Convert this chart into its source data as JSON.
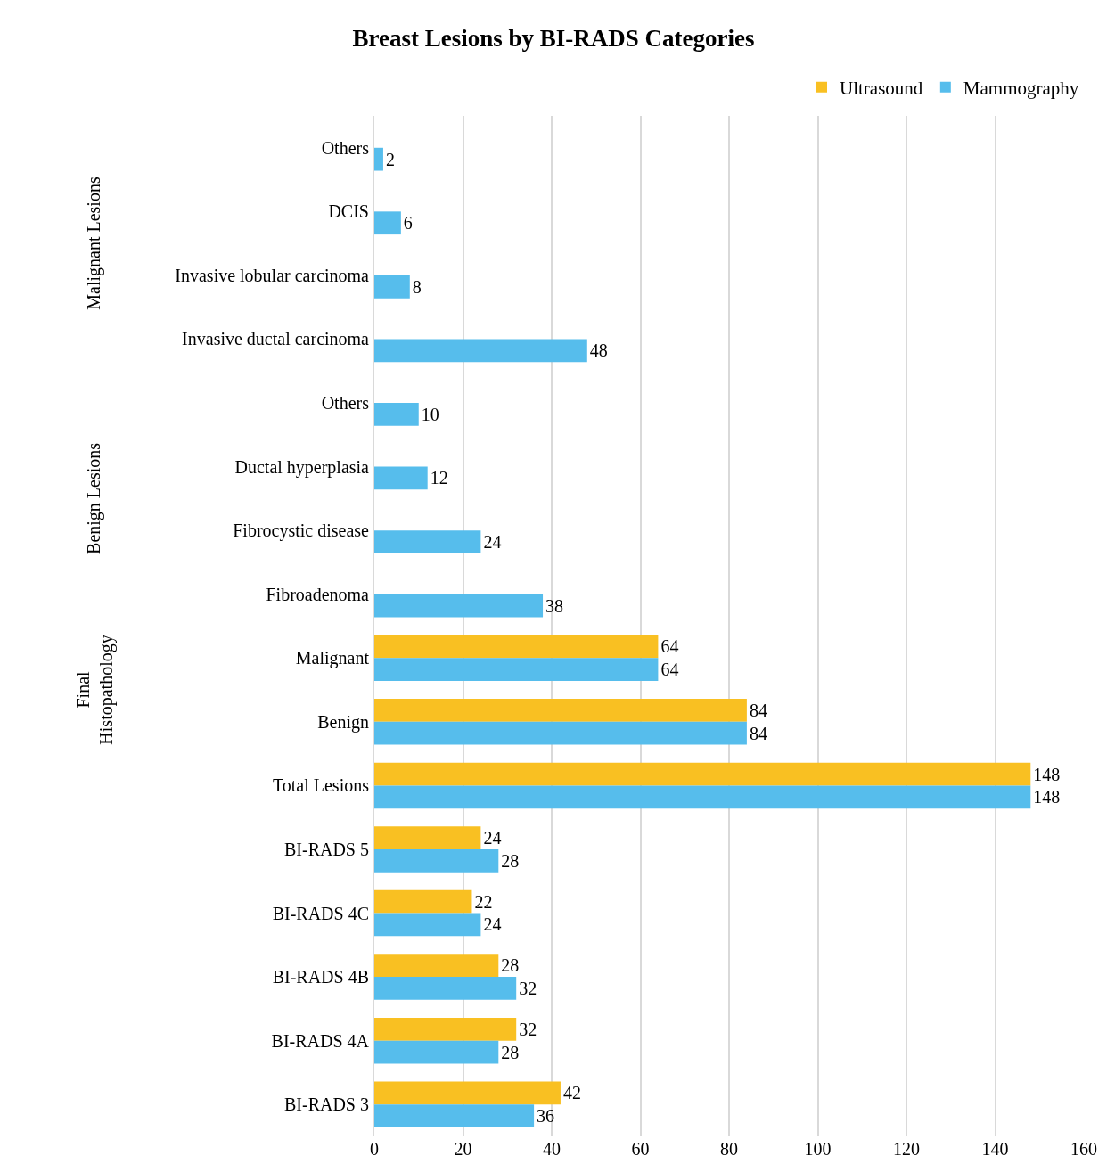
{
  "chart_data": {
    "type": "bar",
    "orientation": "horizontal",
    "title": "Breast Lesions by BI-RADS Categories",
    "categories": [
      "Others",
      "DCIS",
      "Invasive lobular carcinoma",
      "Invasive ductal carcinoma",
      "Others",
      "Ductal hyperplasia",
      "Fibrocystic disease",
      "Fibroadenoma",
      "Malignant",
      "Benign",
      "Total Lesions",
      "BI-RADS 5",
      "BI-RADS 4C",
      "BI-RADS 4B",
      "BI-RADS 4A",
      "BI-RADS 3"
    ],
    "series": [
      {
        "name": "Ultrasound",
        "color": "#f9c022",
        "values": [
          null,
          null,
          null,
          null,
          null,
          null,
          null,
          null,
          64,
          84,
          148,
          24,
          22,
          28,
          32,
          42
        ]
      },
      {
        "name": "Mammography",
        "color": "#56bdec",
        "values": [
          2,
          6,
          8,
          48,
          10,
          12,
          24,
          38,
          64,
          84,
          148,
          28,
          24,
          32,
          28,
          36
        ]
      }
    ],
    "annotations": [
      "Malignant Lesions",
      "Benign Lesions",
      "Final Histopathology"
    ],
    "xlim": [
      0,
      160
    ],
    "xticks": [
      0,
      20,
      40,
      60,
      80,
      100,
      120,
      140,
      160
    ],
    "grid": "x",
    "legend": "top right",
    "data_labels": true
  }
}
